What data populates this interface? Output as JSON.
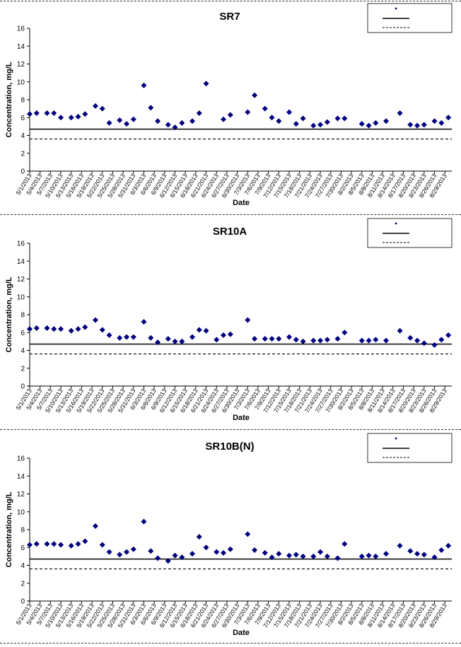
{
  "page": {
    "xlabel": "Date",
    "ylabel": "Concentration, mg/L"
  },
  "colors": {
    "marker": "#000080",
    "line": "#000000"
  },
  "x_ticks": [
    "5/1/2013",
    "5/4/2013",
    "5/7/2013",
    "5/10/2013",
    "5/13/2013",
    "5/16/2013",
    "5/19/2013",
    "5/22/2013",
    "5/25/2013",
    "5/28/2013",
    "5/31/2013",
    "6/3/2013",
    "6/6/2013",
    "6/9/2013",
    "6/12/2013",
    "6/15/2013",
    "6/18/2013",
    "6/21/2013",
    "6/24/2013",
    "6/27/2013",
    "6/30/2013",
    "7/3/2013",
    "7/6/2013",
    "7/9/2013",
    "7/12/2013",
    "7/15/2013",
    "7/18/2013",
    "7/21/2013",
    "7/24/2013",
    "7/27/2013",
    "7/30/2013",
    "8/2/2013",
    "8/5/2013",
    "8/8/2013",
    "8/11/2013",
    "8/14/2013",
    "8/17/2013",
    "8/20/2013",
    "8/23/2013",
    "8/26/2013",
    "8/29/2013"
  ],
  "chart_data": [
    {
      "type": "scatter",
      "title": "SR7",
      "xlabel": "Date",
      "ylabel": "Concentration, mg/L",
      "ylim": [
        0,
        16
      ],
      "yticks": [
        0,
        2,
        4,
        6,
        8,
        10,
        12,
        14,
        16
      ],
      "xlim": [
        "5/1/2013",
        "8/31/2013"
      ],
      "grid": false,
      "legend": "top-right",
      "reference_lines": [
        {
          "style": "solid",
          "y": 4.7
        },
        {
          "style": "dashed",
          "y": 3.6
        }
      ],
      "series": [
        {
          "points": [
            [
              "5/1/2013",
              6.4
            ],
            [
              "5/3/2013",
              6.5
            ],
            [
              "5/6/2013",
              6.5
            ],
            [
              "5/8/2013",
              6.5
            ],
            [
              "5/10/2013",
              6.0
            ],
            [
              "5/13/2013",
              6.0
            ],
            [
              "5/15/2013",
              6.1
            ],
            [
              "5/17/2013",
              6.4
            ],
            [
              "5/20/2013",
              7.3
            ],
            [
              "5/22/2013",
              7.0
            ],
            [
              "5/24/2013",
              5.4
            ],
            [
              "5/27/2013",
              5.7
            ],
            [
              "5/29/2013",
              5.3
            ],
            [
              "5/31/2013",
              5.8
            ],
            [
              "6/3/2013",
              9.6
            ],
            [
              "6/5/2013",
              7.1
            ],
            [
              "6/7/2013",
              5.6
            ],
            [
              "6/10/2013",
              5.2
            ],
            [
              "6/12/2013",
              4.9
            ],
            [
              "6/14/2013",
              5.4
            ],
            [
              "6/17/2013",
              5.6
            ],
            [
              "6/19/2013",
              6.5
            ],
            [
              "6/21/2013",
              9.8
            ],
            [
              "6/26/2013",
              5.8
            ],
            [
              "6/28/2013",
              6.3
            ],
            [
              "7/3/2013",
              6.6
            ],
            [
              "7/5/2013",
              8.5
            ],
            [
              "7/8/2013",
              7.0
            ],
            [
              "7/10/2013",
              6.0
            ],
            [
              "7/12/2013",
              5.6
            ],
            [
              "7/15/2013",
              6.6
            ],
            [
              "7/17/2013",
              5.3
            ],
            [
              "7/19/2013",
              5.9
            ],
            [
              "7/22/2013",
              5.1
            ],
            [
              "7/24/2013",
              5.2
            ],
            [
              "7/26/2013",
              5.5
            ],
            [
              "7/29/2013",
              5.9
            ],
            [
              "7/31/2013",
              5.9
            ],
            [
              "8/5/2013",
              5.3
            ],
            [
              "8/7/2013",
              5.1
            ],
            [
              "8/9/2013",
              5.4
            ],
            [
              "8/12/2013",
              5.6
            ],
            [
              "8/16/2013",
              6.5
            ],
            [
              "8/19/2013",
              5.2
            ],
            [
              "8/21/2013",
              5.1
            ],
            [
              "8/23/2013",
              5.2
            ],
            [
              "8/26/2013",
              5.6
            ],
            [
              "8/28/2013",
              5.4
            ],
            [
              "8/30/2013",
              6.0
            ]
          ]
        }
      ]
    },
    {
      "type": "scatter",
      "title": "SR10A",
      "xlabel": "Date",
      "ylabel": "Concentration, mg/L",
      "ylim": [
        0,
        16
      ],
      "yticks": [
        0,
        2,
        4,
        6,
        8,
        10,
        12,
        14,
        16
      ],
      "xlim": [
        "5/1/2013",
        "8/31/2013"
      ],
      "grid": false,
      "legend": "top-right",
      "reference_lines": [
        {
          "style": "solid",
          "y": 4.7
        },
        {
          "style": "dashed",
          "y": 3.6
        }
      ],
      "series": [
        {
          "points": [
            [
              "5/1/2013",
              6.4
            ],
            [
              "5/3/2013",
              6.5
            ],
            [
              "5/6/2013",
              6.5
            ],
            [
              "5/8/2013",
              6.4
            ],
            [
              "5/10/2013",
              6.4
            ],
            [
              "5/13/2013",
              6.2
            ],
            [
              "5/15/2013",
              6.4
            ],
            [
              "5/17/2013",
              6.6
            ],
            [
              "5/20/2013",
              7.4
            ],
            [
              "5/22/2013",
              6.3
            ],
            [
              "5/24/2013",
              5.7
            ],
            [
              "5/27/2013",
              5.4
            ],
            [
              "5/29/2013",
              5.5
            ],
            [
              "5/31/2013",
              5.5
            ],
            [
              "6/3/2013",
              7.2
            ],
            [
              "6/5/2013",
              5.4
            ],
            [
              "6/7/2013",
              4.9
            ],
            [
              "6/10/2013",
              5.3
            ],
            [
              "6/12/2013",
              5.0
            ],
            [
              "6/14/2013",
              5.0
            ],
            [
              "6/17/2013",
              5.5
            ],
            [
              "6/19/2013",
              6.3
            ],
            [
              "6/21/2013",
              6.2
            ],
            [
              "6/24/2013",
              5.2
            ],
            [
              "6/26/2013",
              5.7
            ],
            [
              "6/28/2013",
              5.8
            ],
            [
              "7/3/2013",
              7.4
            ],
            [
              "7/5/2013",
              5.3
            ],
            [
              "7/8/2013",
              5.3
            ],
            [
              "7/10/2013",
              5.3
            ],
            [
              "7/12/2013",
              5.3
            ],
            [
              "7/15/2013",
              5.5
            ],
            [
              "7/17/2013",
              5.2
            ],
            [
              "7/19/2013",
              5.0
            ],
            [
              "7/22/2013",
              5.1
            ],
            [
              "7/24/2013",
              5.1
            ],
            [
              "7/26/2013",
              5.2
            ],
            [
              "7/29/2013",
              5.3
            ],
            [
              "7/31/2013",
              6.0
            ],
            [
              "8/5/2013",
              5.1
            ],
            [
              "8/7/2013",
              5.1
            ],
            [
              "8/9/2013",
              5.2
            ],
            [
              "8/12/2013",
              5.1
            ],
            [
              "8/16/2013",
              6.2
            ],
            [
              "8/19/2013",
              5.4
            ],
            [
              "8/21/2013",
              5.1
            ],
            [
              "8/23/2013",
              4.8
            ],
            [
              "8/26/2013",
              4.6
            ],
            [
              "8/28/2013",
              5.2
            ],
            [
              "8/30/2013",
              5.7
            ]
          ]
        }
      ]
    },
    {
      "type": "scatter",
      "title": "SR10B(N)",
      "xlabel": "Date",
      "ylabel": "Concentration, mg/L",
      "ylim": [
        0,
        16
      ],
      "yticks": [
        0,
        2,
        4,
        6,
        8,
        10,
        12,
        14,
        16
      ],
      "xlim": [
        "5/1/2013",
        "8/31/2013"
      ],
      "grid": false,
      "legend": "top-right",
      "reference_lines": [
        {
          "style": "solid",
          "y": 4.7
        },
        {
          "style": "dashed",
          "y": 3.6
        }
      ],
      "series": [
        {
          "points": [
            [
              "5/1/2013",
              6.3
            ],
            [
              "5/3/2013",
              6.4
            ],
            [
              "5/6/2013",
              6.4
            ],
            [
              "5/8/2013",
              6.4
            ],
            [
              "5/10/2013",
              6.3
            ],
            [
              "5/13/2013",
              6.2
            ],
            [
              "5/15/2013",
              6.4
            ],
            [
              "5/17/2013",
              6.7
            ],
            [
              "5/20/2013",
              8.4
            ],
            [
              "5/22/2013",
              6.3
            ],
            [
              "5/24/2013",
              5.5
            ],
            [
              "5/27/2013",
              5.2
            ],
            [
              "5/29/2013",
              5.5
            ],
            [
              "5/31/2013",
              5.8
            ],
            [
              "6/3/2013",
              8.9
            ],
            [
              "6/5/2013",
              5.6
            ],
            [
              "6/7/2013",
              4.8
            ],
            [
              "6/10/2013",
              4.5
            ],
            [
              "6/12/2013",
              5.1
            ],
            [
              "6/14/2013",
              4.9
            ],
            [
              "6/17/2013",
              5.3
            ],
            [
              "6/19/2013",
              7.2
            ],
            [
              "6/21/2013",
              6.0
            ],
            [
              "6/24/2013",
              5.5
            ],
            [
              "6/26/2013",
              5.4
            ],
            [
              "6/28/2013",
              5.8
            ],
            [
              "7/3/2013",
              7.5
            ],
            [
              "7/5/2013",
              5.7
            ],
            [
              "7/8/2013",
              5.4
            ],
            [
              "7/10/2013",
              4.9
            ],
            [
              "7/12/2013",
              5.3
            ],
            [
              "7/15/2013",
              5.1
            ],
            [
              "7/17/2013",
              5.2
            ],
            [
              "7/19/2013",
              5.0
            ],
            [
              "7/22/2013",
              5.0
            ],
            [
              "7/24/2013",
              5.5
            ],
            [
              "7/26/2013",
              5.0
            ],
            [
              "7/29/2013",
              4.8
            ],
            [
              "7/31/2013",
              6.4
            ],
            [
              "8/5/2013",
              5.0
            ],
            [
              "8/7/2013",
              5.1
            ],
            [
              "8/9/2013",
              5.0
            ],
            [
              "8/12/2013",
              5.3
            ],
            [
              "8/16/2013",
              6.2
            ],
            [
              "8/19/2013",
              5.6
            ],
            [
              "8/21/2013",
              5.3
            ],
            [
              "8/23/2013",
              5.2
            ],
            [
              "8/26/2013",
              4.9
            ],
            [
              "8/28/2013",
              5.7
            ],
            [
              "8/30/2013",
              6.2
            ]
          ]
        }
      ]
    }
  ]
}
